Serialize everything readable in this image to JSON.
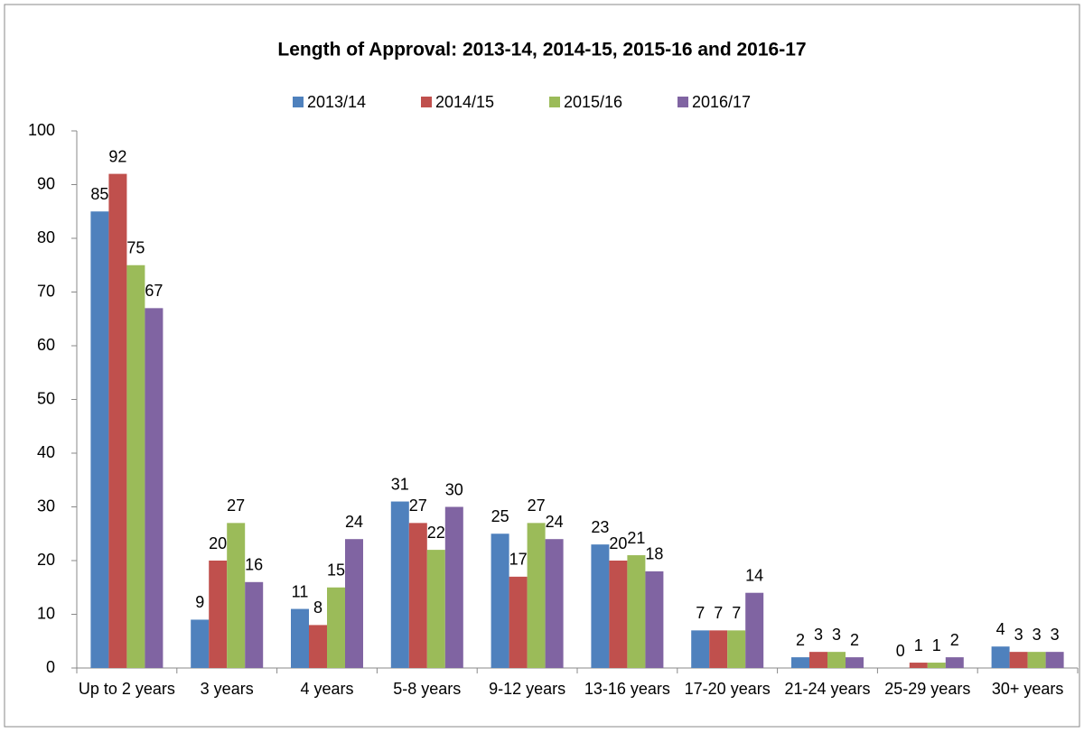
{
  "chart_data": {
    "type": "bar",
    "title": "Length of Approval: 2013-14, 2014-15, 2015-16 and 2016-17",
    "categories": [
      "Up to 2 years",
      "3 years",
      "4 years",
      "5-8 years",
      "9-12 years",
      "13-16 years",
      "17-20 years",
      "21-24 years",
      "25-29 years",
      "30+ years"
    ],
    "series": [
      {
        "name": "2013/14",
        "color": "#4f81bd",
        "values": [
          85,
          9,
          11,
          31,
          25,
          23,
          7,
          2,
          0,
          4
        ]
      },
      {
        "name": "2014/15",
        "color": "#c0504d",
        "values": [
          92,
          20,
          8,
          27,
          17,
          20,
          7,
          3,
          1,
          3
        ]
      },
      {
        "name": "2015/16",
        "color": "#9bbb59",
        "values": [
          75,
          27,
          15,
          22,
          27,
          21,
          7,
          3,
          1,
          3
        ]
      },
      {
        "name": "2016/17",
        "color": "#8064a2",
        "values": [
          67,
          16,
          24,
          30,
          24,
          18,
          14,
          2,
          2,
          3
        ]
      }
    ],
    "ylim": [
      0,
      100
    ],
    "yticks": [
      0,
      10,
      20,
      30,
      40,
      50,
      60,
      70,
      80,
      90,
      100
    ],
    "grid": false,
    "legend": "top"
  }
}
